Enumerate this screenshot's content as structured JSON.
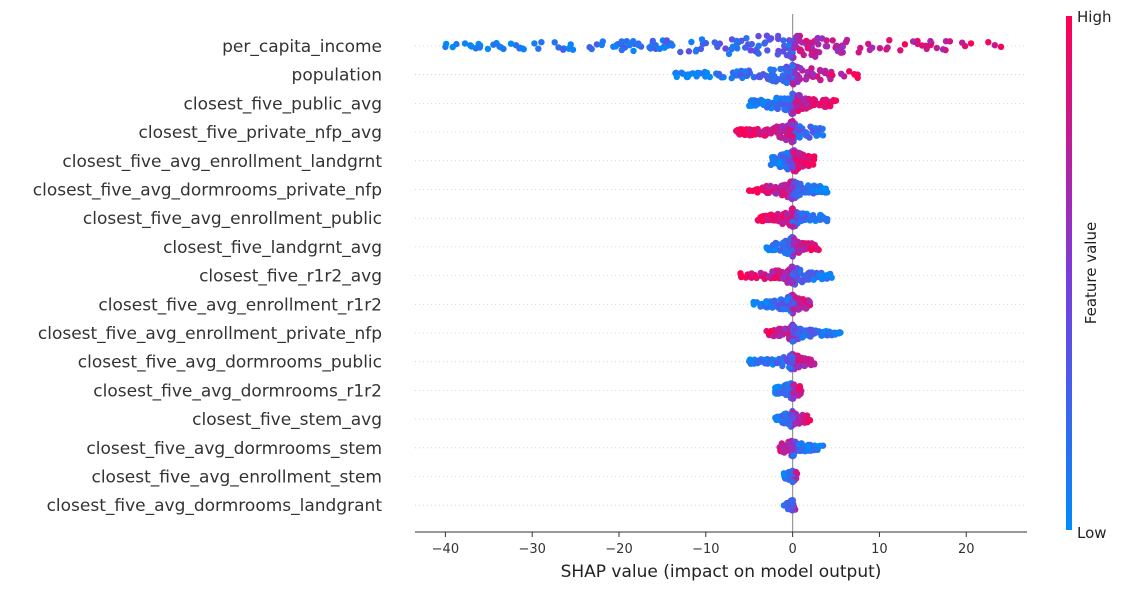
{
  "chart_data": {
    "type": "scatter",
    "subtype": "shap-beeswarm",
    "title": "",
    "xlabel": "SHAP value (impact on model output)",
    "xlim": [
      -43.5,
      27
    ],
    "xticks": [
      -40,
      -30,
      -20,
      -10,
      0,
      10,
      20
    ],
    "xtick_labels": [
      "−40",
      "−30",
      "−20",
      "−10",
      "0",
      "10",
      "20"
    ],
    "grid": false,
    "colorbar": {
      "title": "Feature value",
      "high_label": "High",
      "low_label": "Low",
      "low_color": "#008bfb",
      "mid_color": "#7c3bdc",
      "high_color": "#ff0052",
      "placement": "right"
    },
    "features": [
      {
        "name": "per_capita_income",
        "min": -40,
        "max": 24,
        "spread": 0.45,
        "lowSide": "neg",
        "count": 220
      },
      {
        "name": "population",
        "min": -13.5,
        "max": 7.5,
        "spread": 0.35,
        "lowSide": "neg",
        "count": 140
      },
      {
        "name": "closest_five_public_avg",
        "min": -5,
        "max": 5,
        "spread": 0.4,
        "lowSide": "neg",
        "count": 150
      },
      {
        "name": "closest_five_private_nfp_avg",
        "min": -6.5,
        "max": 3.5,
        "spread": 0.4,
        "lowSide": "pos",
        "count": 150
      },
      {
        "name": "closest_five_avg_enrollment_landgrnt",
        "min": -2.5,
        "max": 2.5,
        "spread": 0.45,
        "lowSide": "neg",
        "count": 140
      },
      {
        "name": "closest_five_avg_dormrooms_private_nfp",
        "min": -5,
        "max": 4,
        "spread": 0.35,
        "lowSide": "pos",
        "count": 140
      },
      {
        "name": "closest_five_avg_enrollment_public",
        "min": -4,
        "max": 4,
        "spread": 0.35,
        "lowSide": "pos",
        "count": 130
      },
      {
        "name": "closest_five_landgrnt_avg",
        "min": -3,
        "max": 3,
        "spread": 0.35,
        "lowSide": "neg",
        "count": 120
      },
      {
        "name": "closest_five_r1r2_avg",
        "min": -6,
        "max": 4.5,
        "spread": 0.35,
        "lowSide": "pos",
        "count": 130
      },
      {
        "name": "closest_five_avg_enrollment_r1r2",
        "min": -4.5,
        "max": 2,
        "spread": 0.35,
        "lowSide": "neg",
        "count": 120
      },
      {
        "name": "closest_five_avg_enrollment_private_nfp",
        "min": -3,
        "max": 5.5,
        "spread": 0.3,
        "lowSide": "pos",
        "count": 120
      },
      {
        "name": "closest_five_avg_dormrooms_public",
        "min": -5,
        "max": 2.5,
        "spread": 0.3,
        "lowSide": "neg",
        "count": 110
      },
      {
        "name": "closest_five_avg_dormrooms_r1r2",
        "min": -2,
        "max": 1,
        "spread": 0.3,
        "lowSide": "neg",
        "count": 90
      },
      {
        "name": "closest_five_stem_avg",
        "min": -2,
        "max": 2,
        "spread": 0.3,
        "lowSide": "neg",
        "count": 90
      },
      {
        "name": "closest_five_avg_dormrooms_stem",
        "min": -1.5,
        "max": 3.5,
        "spread": 0.3,
        "lowSide": "pos",
        "count": 90
      },
      {
        "name": "closest_five_avg_enrollment_stem",
        "min": -1,
        "max": 0.5,
        "spread": 0.2,
        "lowSide": "neg",
        "count": 40
      },
      {
        "name": "closest_five_avg_dormrooms_landgrant",
        "min": -1,
        "max": 0.3,
        "spread": 0.2,
        "lowSide": "neg",
        "count": 30
      }
    ]
  }
}
